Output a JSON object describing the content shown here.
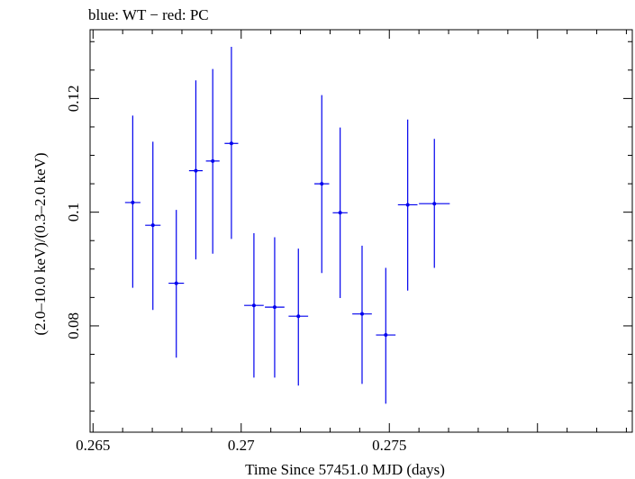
{
  "chart_data": {
    "type": "scatter",
    "title": "blue: WT − red: PC",
    "xlabel": "Time Since 57451.0 MJD (days)",
    "ylabel": "(2.0–10.0 keV)/(0.3–2.0 keV)",
    "xlim": [
      0.2649,
      0.2832
    ],
    "ylim": [
      0.0613,
      0.1321
    ],
    "x_ticks": [
      {
        "value": 0.265,
        "label": "0.265"
      },
      {
        "value": 0.27,
        "label": "0.27"
      },
      {
        "value": 0.275,
        "label": "0.275"
      }
    ],
    "y_ticks": [
      {
        "value": 0.08,
        "label": "0.08"
      },
      {
        "value": 0.1,
        "label": "0.1"
      },
      {
        "value": 0.12,
        "label": "0.12"
      }
    ],
    "color": "#0000ee",
    "series": [
      {
        "points": [
          {
            "x": 0.26634,
            "y": 0.1017,
            "xerr": 0.00026,
            "ylo": 0.0867,
            "yhi": 0.117
          },
          {
            "x": 0.26702,
            "y": 0.0977,
            "xerr": 0.00026,
            "ylo": 0.0828,
            "yhi": 0.1124
          },
          {
            "x": 0.26781,
            "y": 0.0875,
            "xerr": 0.00026,
            "ylo": 0.0744,
            "yhi": 0.1004
          },
          {
            "x": 0.26847,
            "y": 0.1073,
            "xerr": 0.00023,
            "ylo": 0.0917,
            "yhi": 0.1232
          },
          {
            "x": 0.26904,
            "y": 0.109,
            "xerr": 0.00023,
            "ylo": 0.0927,
            "yhi": 0.1252
          },
          {
            "x": 0.26967,
            "y": 0.1121,
            "xerr": 0.00023,
            "ylo": 0.0953,
            "yhi": 0.1291
          },
          {
            "x": 0.27043,
            "y": 0.0836,
            "xerr": 0.00033,
            "ylo": 0.0709,
            "yhi": 0.0963
          },
          {
            "x": 0.27113,
            "y": 0.0833,
            "xerr": 0.00033,
            "ylo": 0.0709,
            "yhi": 0.0956
          },
          {
            "x": 0.27193,
            "y": 0.0817,
            "xerr": 0.00033,
            "ylo": 0.0695,
            "yhi": 0.0936
          },
          {
            "x": 0.27272,
            "y": 0.105,
            "xerr": 0.00025,
            "ylo": 0.0893,
            "yhi": 0.1206
          },
          {
            "x": 0.27334,
            "y": 0.0999,
            "xerr": 0.00025,
            "ylo": 0.0849,
            "yhi": 0.1149
          },
          {
            "x": 0.27408,
            "y": 0.0821,
            "xerr": 0.00033,
            "ylo": 0.0698,
            "yhi": 0.0941
          },
          {
            "x": 0.27488,
            "y": 0.0784,
            "xerr": 0.00033,
            "ylo": 0.0663,
            "yhi": 0.0902
          },
          {
            "x": 0.27562,
            "y": 0.1013,
            "xerr": 0.00033,
            "ylo": 0.0862,
            "yhi": 0.1163
          },
          {
            "x": 0.27652,
            "y": 0.1015,
            "xerr": 0.00052,
            "ylo": 0.0902,
            "yhi": 0.1129
          }
        ]
      }
    ]
  }
}
